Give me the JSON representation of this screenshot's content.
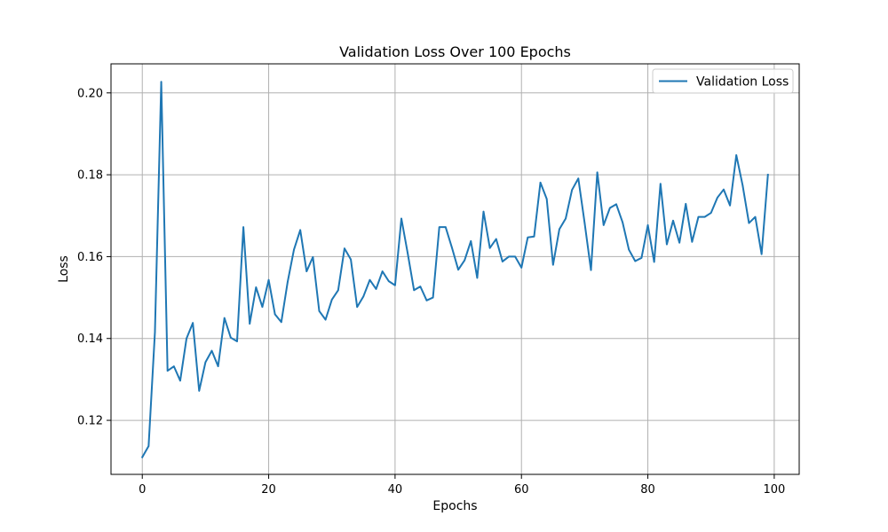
{
  "chart_data": {
    "type": "line",
    "title": "Validation Loss Over 100 Epochs",
    "xlabel": "Epochs",
    "ylabel": "Loss",
    "xlim": [
      -4.95,
      103.95
    ],
    "ylim": [
      0.1068,
      0.2071
    ],
    "xticks": [
      0,
      20,
      40,
      60,
      80,
      100
    ],
    "yticks": [
      0.12,
      0.14,
      0.16,
      0.18,
      0.2
    ],
    "ytick_labels": [
      "0.12",
      "0.14",
      "0.16",
      "0.18",
      "0.20"
    ],
    "grid": true,
    "legend_position": "top-right",
    "series": [
      {
        "name": "Validation Loss",
        "color": "#1f77b4",
        "x": [
          0,
          1,
          2,
          3,
          4,
          5,
          6,
          7,
          8,
          9,
          10,
          11,
          12,
          13,
          14,
          15,
          16,
          17,
          18,
          19,
          20,
          21,
          22,
          23,
          24,
          25,
          26,
          27,
          28,
          29,
          30,
          31,
          32,
          33,
          34,
          35,
          36,
          37,
          38,
          39,
          40,
          41,
          42,
          43,
          44,
          45,
          46,
          47,
          48,
          49,
          50,
          51,
          52,
          53,
          54,
          55,
          56,
          57,
          58,
          59,
          60,
          61,
          62,
          63,
          64,
          65,
          66,
          67,
          68,
          69,
          70,
          71,
          72,
          73,
          74,
          75,
          76,
          77,
          78,
          79,
          80,
          81,
          82,
          83,
          84,
          85,
          86,
          87,
          88,
          89,
          90,
          91,
          92,
          93,
          94,
          95,
          96,
          97,
          98,
          99
        ],
        "values": [
          0.111,
          0.1137,
          0.1415,
          0.2027,
          0.1321,
          0.1332,
          0.1297,
          0.14,
          0.1438,
          0.1272,
          0.1342,
          0.137,
          0.1332,
          0.145,
          0.1402,
          0.1393,
          0.1672,
          0.1436,
          0.1525,
          0.1477,
          0.1543,
          0.1459,
          0.144,
          0.1538,
          0.1617,
          0.1665,
          0.1564,
          0.1599,
          0.1467,
          0.1446,
          0.1495,
          0.1518,
          0.162,
          0.1593,
          0.1477,
          0.1503,
          0.1543,
          0.1521,
          0.1564,
          0.154,
          0.153,
          0.1693,
          0.1608,
          0.1518,
          0.1527,
          0.1493,
          0.15,
          0.1672,
          0.1672,
          0.1622,
          0.1568,
          0.1591,
          0.1638,
          0.1548,
          0.171,
          0.1621,
          0.1643,
          0.1588,
          0.16,
          0.16,
          0.1573,
          0.1647,
          0.1649,
          0.1781,
          0.1741,
          0.158,
          0.1667,
          0.1693,
          0.1763,
          0.1791,
          0.1682,
          0.1567,
          0.1806,
          0.1677,
          0.1719,
          0.1728,
          0.1684,
          0.1617,
          0.1589,
          0.1597,
          0.1677,
          0.1587,
          0.1778,
          0.163,
          0.1688,
          0.1634,
          0.1729,
          0.1636,
          0.1697,
          0.1697,
          0.1707,
          0.1744,
          0.1764,
          0.1725,
          0.1848,
          0.1774,
          0.1682,
          0.1697,
          0.1606,
          0.18
        ]
      }
    ]
  }
}
